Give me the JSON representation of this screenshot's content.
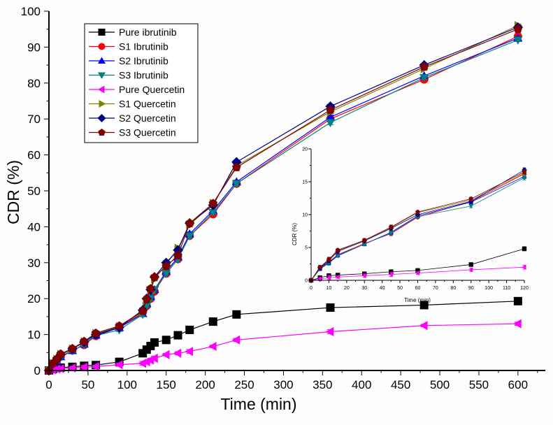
{
  "chart_data": [
    {
      "type": "line",
      "name": "main",
      "title": "",
      "xlabel": "Time (min)",
      "ylabel": "CDR (%)",
      "xlim": [
        0,
        635
      ],
      "ylim": [
        0,
        100
      ],
      "xticks": [
        0,
        50,
        100,
        150,
        200,
        250,
        300,
        350,
        400,
        450,
        500,
        550,
        600
      ],
      "yticks": [
        0,
        10,
        20,
        30,
        40,
        50,
        60,
        70,
        80,
        90,
        100
      ],
      "grid": false,
      "legend_position": "top-left",
      "x": [
        0,
        5,
        10,
        15,
        30,
        45,
        60,
        90,
        120,
        125,
        130,
        135,
        150,
        165,
        180,
        210,
        240,
        360,
        480,
        600
      ],
      "series": [
        {
          "name": "Pure ibrutinib",
          "color": "#000000",
          "marker": "square",
          "values": [
            0,
            0.4,
            0.7,
            0.8,
            1.0,
            1.3,
            1.5,
            2.4,
            4.8,
            5.8,
            6.8,
            7.8,
            8.5,
            9.8,
            11.3,
            13.6,
            15.6,
            17.5,
            18.2,
            19.3
          ]
        },
        {
          "name": "S1 Ibrutinib",
          "color": "#ff0000",
          "marker": "circle",
          "values": [
            0,
            1.9,
            2.8,
            3.9,
            5.6,
            7.1,
            9.6,
            12.0,
            16.2,
            18.0,
            20.0,
            22.0,
            27.0,
            31.0,
            37.5,
            43.5,
            52.0,
            70.0,
            81.0,
            93.0
          ]
        },
        {
          "name": "S2 Ibrutinib",
          "color": "#0000ff",
          "marker": "triangle-up",
          "values": [
            0,
            1.8,
            2.7,
            3.8,
            5.5,
            7.3,
            9.8,
            11.9,
            15.8,
            18.5,
            20.5,
            22.5,
            27.5,
            31.5,
            38.0,
            44.5,
            52.5,
            70.5,
            82.0,
            92.5
          ]
        },
        {
          "name": "S3 Ibrutinib",
          "color": "#008080",
          "marker": "triangle-down",
          "values": [
            0,
            1.7,
            2.6,
            3.7,
            5.5,
            7.2,
            9.7,
            11.3,
            15.6,
            18.0,
            20.0,
            22.5,
            27.0,
            31.0,
            37.5,
            44.0,
            52.0,
            69.0,
            81.5,
            92.0
          ]
        },
        {
          "name": "Pure Quercetin",
          "color": "#ff00ff",
          "marker": "triangle-left",
          "values": [
            0,
            0.2,
            0.4,
            0.5,
            0.7,
            0.9,
            1.1,
            1.6,
            2.0,
            2.4,
            2.9,
            3.4,
            4.4,
            4.8,
            5.3,
            6.7,
            8.5,
            10.8,
            12.5,
            13.0
          ]
        },
        {
          "name": "S1 Quercetin",
          "color": "#808000",
          "marker": "triangle-right",
          "values": [
            0,
            2.0,
            3.1,
            4.5,
            6.0,
            8.0,
            10.3,
            12.2,
            16.3,
            19.5,
            22.0,
            25.5,
            29.5,
            34.0,
            40.5,
            46.5,
            57.0,
            72.0,
            84.0,
            96.0
          ]
        },
        {
          "name": "S2 Quercetin",
          "color": "#000080",
          "marker": "diamond",
          "values": [
            0,
            1.9,
            3.0,
            4.4,
            6.0,
            7.9,
            10.0,
            12.0,
            16.8,
            20.0,
            22.5,
            26.0,
            30.0,
            33.5,
            41.0,
            46.0,
            58.0,
            73.5,
            85.0,
            95.5
          ]
        },
        {
          "name": "S3 Quercetin",
          "color": "#800000",
          "marker": "pentagon",
          "values": [
            0,
            2.0,
            3.2,
            4.6,
            6.1,
            8.1,
            10.4,
            12.4,
            16.5,
            19.8,
            22.8,
            26.0,
            29.0,
            32.0,
            41.0,
            46.5,
            56.5,
            72.5,
            84.5,
            95.0
          ]
        }
      ]
    },
    {
      "type": "line",
      "name": "inset",
      "title": "",
      "xlabel": "Time (min)",
      "ylabel": "CDR (%)",
      "xlim": [
        0,
        120
      ],
      "ylim": [
        0,
        20
      ],
      "xticks": [
        0,
        10,
        20,
        30,
        40,
        50,
        60,
        70,
        80,
        90,
        100,
        110,
        120
      ],
      "yticks": [
        0,
        5,
        10,
        15,
        20
      ],
      "grid": false,
      "x": [
        0,
        5,
        10,
        15,
        30,
        45,
        60,
        90,
        120
      ],
      "series": [
        {
          "name": "Pure ibrutinib",
          "color": "#000000",
          "marker": "square",
          "values": [
            0,
            0.4,
            0.7,
            0.8,
            1.0,
            1.3,
            1.5,
            2.4,
            4.8
          ]
        },
        {
          "name": "S1 Ibrutinib",
          "color": "#ff0000",
          "marker": "circle",
          "values": [
            0,
            1.9,
            2.8,
            3.9,
            5.6,
            7.1,
            9.6,
            12.0,
            16.2
          ]
        },
        {
          "name": "S2 Ibrutinib",
          "color": "#0000ff",
          "marker": "triangle-up",
          "values": [
            0,
            1.8,
            2.7,
            3.8,
            5.5,
            7.3,
            9.8,
            11.9,
            15.8
          ]
        },
        {
          "name": "S3 Ibrutinib",
          "color": "#008080",
          "marker": "triangle-down",
          "values": [
            0,
            1.7,
            2.6,
            3.7,
            5.5,
            7.2,
            9.7,
            11.3,
            15.6
          ]
        },
        {
          "name": "Pure Quercetin",
          "color": "#ff00ff",
          "marker": "triangle-left",
          "values": [
            0,
            0.2,
            0.4,
            0.5,
            0.7,
            0.9,
            1.1,
            1.6,
            2.0
          ]
        },
        {
          "name": "S1 Quercetin",
          "color": "#808000",
          "marker": "triangle-right",
          "values": [
            0,
            2.0,
            3.1,
            4.5,
            6.0,
            8.0,
            10.3,
            12.2,
            16.3
          ]
        },
        {
          "name": "S2 Quercetin",
          "color": "#000080",
          "marker": "diamond",
          "values": [
            0,
            1.9,
            3.0,
            4.4,
            6.0,
            7.9,
            10.0,
            12.0,
            16.8
          ]
        },
        {
          "name": "S3 Quercetin",
          "color": "#800000",
          "marker": "pentagon",
          "values": [
            0,
            2.0,
            3.2,
            4.6,
            6.1,
            8.1,
            10.4,
            12.4,
            16.5
          ]
        }
      ]
    }
  ]
}
